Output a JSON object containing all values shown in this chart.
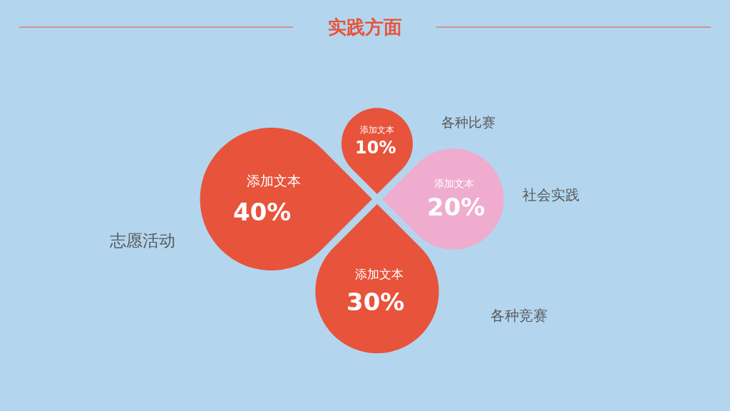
{
  "chart_data": {
    "type": "other",
    "title": "实践方面",
    "categories": [
      "志愿活动",
      "各种比赛",
      "社会实践",
      "各种竞赛"
    ],
    "values": [
      40,
      10,
      20,
      30
    ],
    "colors": [
      "#e8533b",
      "#e8533b",
      "#efaccf",
      "#e8533b"
    ],
    "value_labels": [
      "40%",
      "10%",
      "20%",
      "30%"
    ],
    "annotations": [
      "添加文本",
      "添加文本",
      "添加文本",
      "添加文本"
    ]
  }
}
